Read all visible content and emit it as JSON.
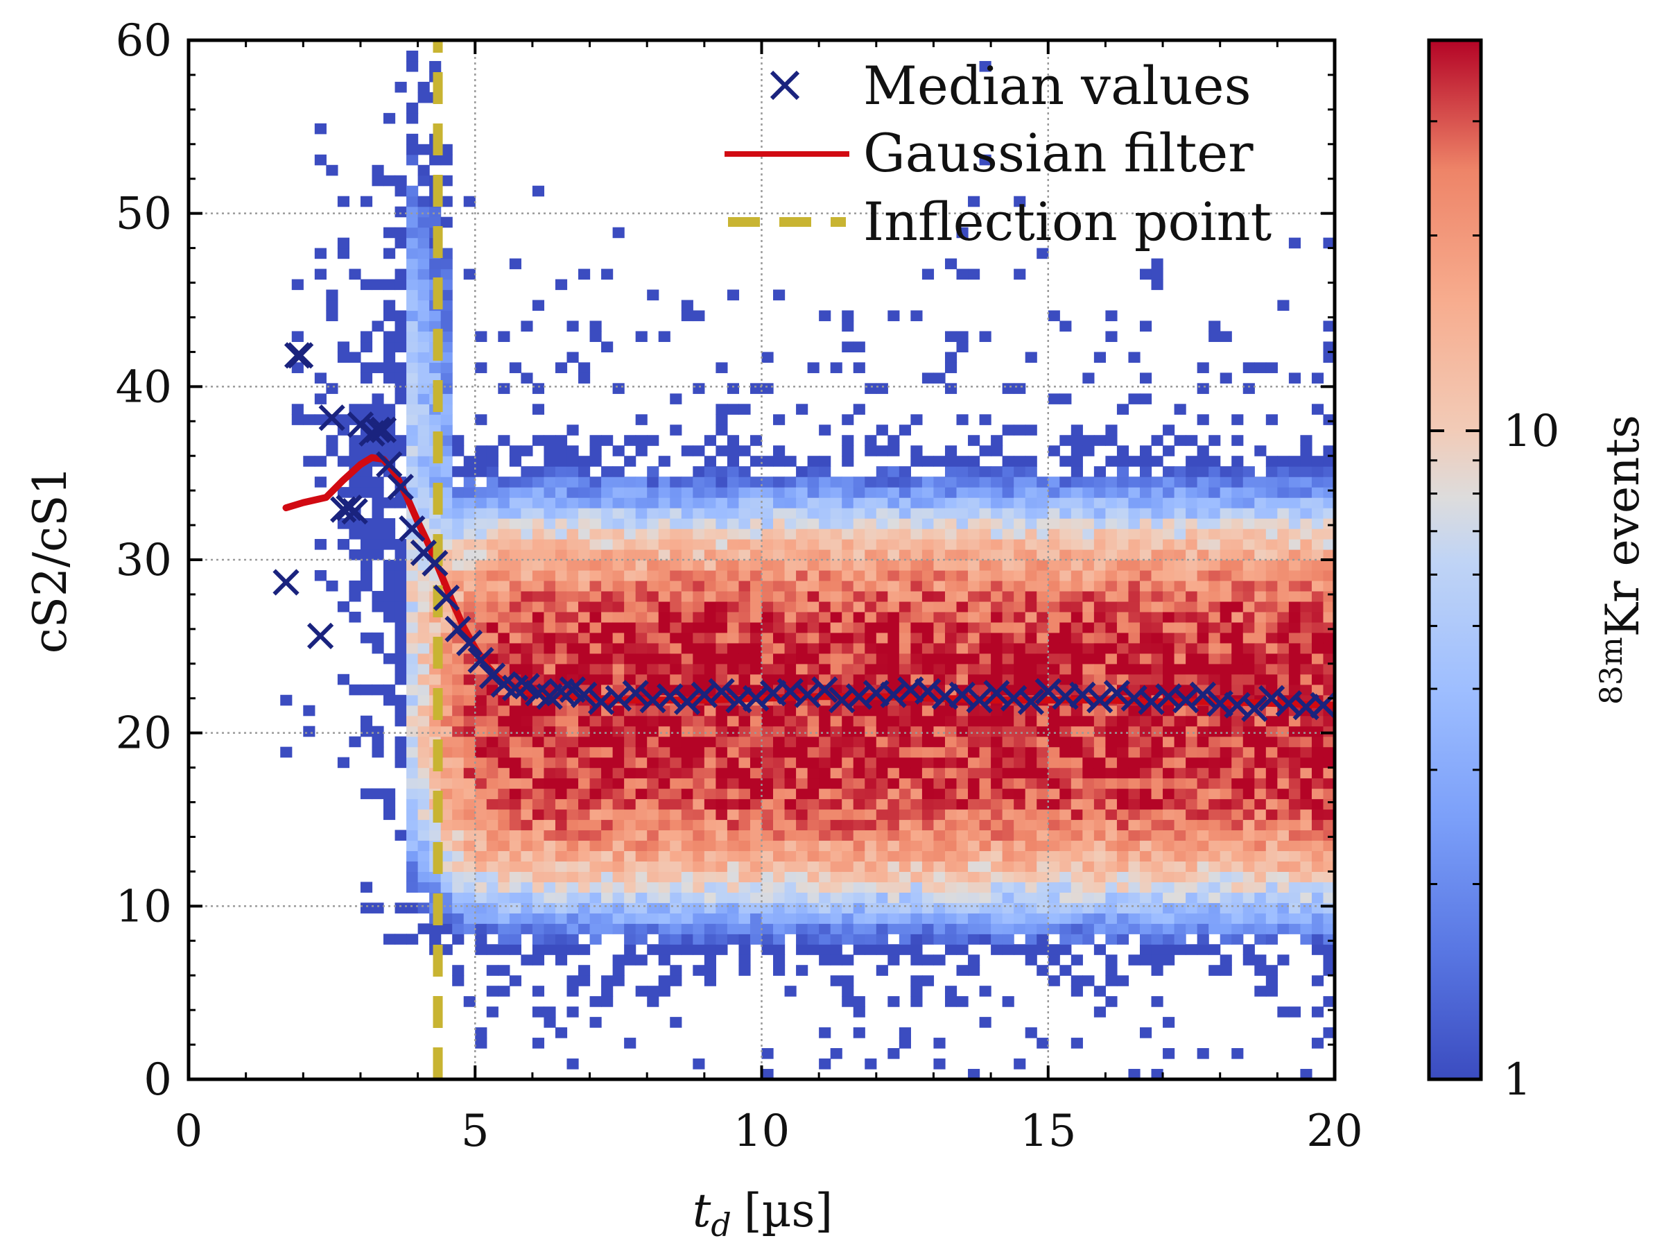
{
  "chart_data": {
    "type": "heatmap",
    "xlabel": "t_d [µs]",
    "xlabel_parts": {
      "symbol": "t",
      "subscript": "d",
      "unit": "[µs]"
    },
    "ylabel": "cS2/cS1",
    "xlim": [
      0,
      20
    ],
    "ylim": [
      0,
      60
    ],
    "xticks": [
      "0",
      "5",
      "10",
      "15",
      "20"
    ],
    "yticks": [
      "0",
      "10",
      "20",
      "30",
      "40",
      "50",
      "60"
    ],
    "grid": true,
    "colorbar": {
      "label": "83mKr events",
      "label_parts": {
        "superscript": "83m",
        "element": "Kr",
        "rest": " events"
      },
      "scale": "log",
      "range": [
        1,
        40
      ],
      "ticks": [
        "1",
        "10"
      ],
      "colormap": "coolwarm"
    },
    "histogram": {
      "band_center_y": 21.5,
      "band_half_width_y": 9,
      "description_axis": "2D histogram of cS2/cS1 versus drift time"
    },
    "series": [
      {
        "name": "Median values",
        "marker": "x",
        "color": "#1a237e",
        "x": [
          1.7,
          1.9,
          1.95,
          2.3,
          2.5,
          2.7,
          2.8,
          2.9,
          3.0,
          3.2,
          3.3,
          3.4,
          3.5,
          3.7,
          3.9,
          4.1,
          4.3,
          4.5,
          4.7,
          4.9,
          5.1,
          5.3,
          5.5,
          5.7,
          5.9,
          6.1,
          6.3,
          6.5,
          6.7,
          6.9,
          7.2,
          7.5,
          7.8,
          8.1,
          8.4,
          8.7,
          9.0,
          9.3,
          9.6,
          9.9,
          10.2,
          10.5,
          10.8,
          11.1,
          11.4,
          11.7,
          12.0,
          12.3,
          12.6,
          12.9,
          13.2,
          13.5,
          13.8,
          14.1,
          14.4,
          14.7,
          15.0,
          15.3,
          15.6,
          15.9,
          16.2,
          16.5,
          16.8,
          17.1,
          17.4,
          17.7,
          18.0,
          18.3,
          18.6,
          18.9,
          19.2,
          19.5,
          19.8
        ],
        "y": [
          28.7,
          41.8,
          41.8,
          25.6,
          38.2,
          32.9,
          33.0,
          32.8,
          37.8,
          37.3,
          37.5,
          37.5,
          35.5,
          34.2,
          31.8,
          30.4,
          29.8,
          27.8,
          26.0,
          25.2,
          24.2,
          23.3,
          22.8,
          22.6,
          22.7,
          22.3,
          22.1,
          22.4,
          22.5,
          22.2,
          21.8,
          22.0,
          22.3,
          21.9,
          22.1,
          21.8,
          22.2,
          22.4,
          21.9,
          22.0,
          22.3,
          22.4,
          22.2,
          22.5,
          21.9,
          22.1,
          22.3,
          22.2,
          22.5,
          22.4,
          22.1,
          22.2,
          21.9,
          22.3,
          22.0,
          21.8,
          22.4,
          22.1,
          22.2,
          21.9,
          22.3,
          22.0,
          21.8,
          22.1,
          21.9,
          22.2,
          21.7,
          21.6,
          21.4,
          22.0,
          21.7,
          21.5,
          21.6
        ]
      },
      {
        "name": "Gaussian filter",
        "line": "solid",
        "color": "#d10a12",
        "x": [
          1.7,
          2.0,
          2.4,
          2.7,
          3.0,
          3.2,
          3.4,
          3.6,
          3.8,
          4.0,
          4.2,
          4.4,
          4.6,
          4.8,
          5.0,
          5.2,
          5.4,
          5.6,
          5.8,
          6.0,
          6.3,
          6.6,
          7.0,
          7.5,
          8.0,
          9.0,
          10.0,
          11.0,
          12.0,
          13.0,
          14.0,
          15.0,
          16.0,
          17.0,
          18.0,
          19.0,
          20.0
        ],
        "y": [
          33.0,
          33.3,
          33.6,
          34.6,
          35.5,
          35.9,
          35.8,
          35.0,
          33.7,
          32.2,
          30.8,
          29.2,
          27.6,
          26.1,
          24.9,
          23.9,
          23.2,
          22.8,
          22.5,
          22.3,
          22.2,
          22.1,
          22.0,
          21.9,
          21.9,
          21.9,
          22.0,
          22.1,
          22.1,
          22.0,
          21.9,
          21.9,
          21.9,
          21.8,
          21.8,
          21.7,
          21.6
        ]
      },
      {
        "name": "Inflection point",
        "line": "dashed",
        "color": "#c8b432",
        "x_value": 4.35
      }
    ],
    "legend_position": "top-right"
  }
}
